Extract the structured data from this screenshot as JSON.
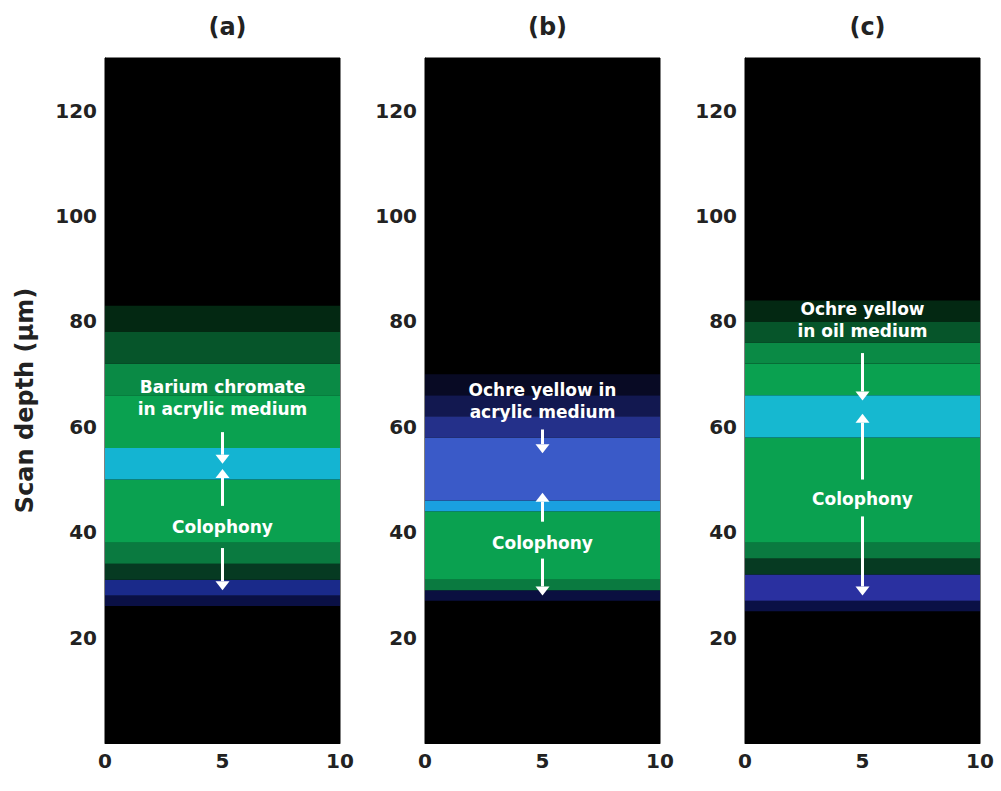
{
  "chart_data": [
    {
      "type": "bands",
      "title": "(a)",
      "ylabel": "Scan depth (μm)",
      "xlim": [
        0,
        10
      ],
      "xticks": [
        0,
        5,
        10
      ],
      "ylim": [
        0,
        130
      ],
      "yticks": [
        20,
        40,
        60,
        80,
        100,
        120
      ],
      "bands": [
        {
          "from": 26,
          "to": 28,
          "color": "#0a1045"
        },
        {
          "from": 28,
          "to": 31,
          "color": "#1a2a8a"
        },
        {
          "from": 31,
          "to": 34,
          "color": "#063a22"
        },
        {
          "from": 34,
          "to": 38,
          "color": "#0a7a40"
        },
        {
          "from": 38,
          "to": 50,
          "color": "#0aa150"
        },
        {
          "from": 50,
          "to": 56,
          "color": "#14b4d2"
        },
        {
          "from": 56,
          "to": 66,
          "color": "#0aa150"
        },
        {
          "from": 66,
          "to": 72,
          "color": "#0a8a45"
        },
        {
          "from": 72,
          "to": 78,
          "color": "#06552a"
        },
        {
          "from": 78,
          "to": 83,
          "color": "#032812"
        }
      ],
      "annotations": [
        {
          "text": "Barium chromate in acrylic medium",
          "x": 5,
          "y": 65.5,
          "arrows": [
            [
              59,
              53
            ]
          ]
        },
        {
          "text": "Colophony",
          "x": 5,
          "y": 41,
          "arrows": [
            [
              45,
              52
            ],
            [
              37,
              29
            ]
          ]
        }
      ]
    },
    {
      "type": "bands",
      "title": "(b)",
      "xlim": [
        0,
        10
      ],
      "xticks": [
        0,
        5,
        10
      ],
      "ylim": [
        0,
        130
      ],
      "yticks": [
        20,
        40,
        60,
        80,
        100,
        120
      ],
      "bands": [
        {
          "from": 27,
          "to": 29,
          "color": "#0a0f40"
        },
        {
          "from": 29,
          "to": 31,
          "color": "#0a7a40"
        },
        {
          "from": 31,
          "to": 44,
          "color": "#0aa150"
        },
        {
          "from": 44,
          "to": 46,
          "color": "#1aa0e0"
        },
        {
          "from": 46,
          "to": 58,
          "color": "#3a5ac8"
        },
        {
          "from": 58,
          "to": 62,
          "color": "#24308a"
        },
        {
          "from": 62,
          "to": 66,
          "color": "#121850"
        },
        {
          "from": 66,
          "to": 70,
          "color": "#080a24"
        }
      ],
      "annotations": [
        {
          "text": "Ochre yellow in acrylic medium",
          "x": 5,
          "y": 65,
          "arrows": [
            [
              59.5,
              55
            ]
          ]
        },
        {
          "text": "Colophony",
          "x": 5,
          "y": 38,
          "arrows": [
            [
              42,
              47.5
            ],
            [
              35,
              28
            ]
          ]
        }
      ]
    },
    {
      "type": "bands",
      "title": "(c)",
      "xlim": [
        0,
        10
      ],
      "xticks": [
        0,
        5,
        10
      ],
      "ylim": [
        0,
        130
      ],
      "yticks": [
        20,
        40,
        60,
        80,
        100,
        120
      ],
      "bands": [
        {
          "from": 25,
          "to": 27,
          "color": "#0a1045"
        },
        {
          "from": 27,
          "to": 32,
          "color": "#2a30a0"
        },
        {
          "from": 32,
          "to": 35,
          "color": "#063a22"
        },
        {
          "from": 35,
          "to": 38,
          "color": "#0a7a40"
        },
        {
          "from": 38,
          "to": 58,
          "color": "#0aa150"
        },
        {
          "from": 58,
          "to": 66,
          "color": "#16b8d0"
        },
        {
          "from": 66,
          "to": 72,
          "color": "#0aa150"
        },
        {
          "from": 72,
          "to": 76,
          "color": "#0a8a45"
        },
        {
          "from": 76,
          "to": 80,
          "color": "#06552a"
        },
        {
          "from": 80,
          "to": 84,
          "color": "#032812"
        }
      ],
      "annotations": [
        {
          "text": "Ochre yellow in oil medium",
          "x": 5,
          "y": 80.3,
          "arrows": [
            [
              74,
              65
            ]
          ]
        },
        {
          "text": "Colophony",
          "x": 5,
          "y": 46.3,
          "arrows": [
            [
              50,
              62.5
            ],
            [
              43,
              28
            ]
          ]
        }
      ]
    }
  ]
}
